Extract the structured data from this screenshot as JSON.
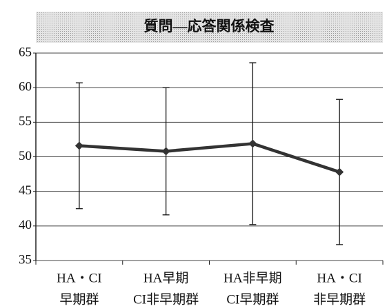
{
  "chart_data": {
    "type": "line",
    "title": "質問—応答関係検査",
    "categories": [
      [
        "HA・CI",
        "早期群"
      ],
      [
        "HA早期",
        "CI非早期群"
      ],
      [
        "HA非早期",
        "CI早期群"
      ],
      [
        "HA・CI",
        "非早期群"
      ]
    ],
    "series": [
      {
        "color": "#333333",
        "values": [
          51.6,
          50.8,
          51.9,
          47.8
        ],
        "errors": [
          9.1,
          9.2,
          11.7,
          10.5
        ]
      }
    ],
    "ylim": [
      35,
      65
    ],
    "yticks": [
      35,
      40,
      45,
      50,
      55,
      60,
      65
    ],
    "grid": true
  }
}
